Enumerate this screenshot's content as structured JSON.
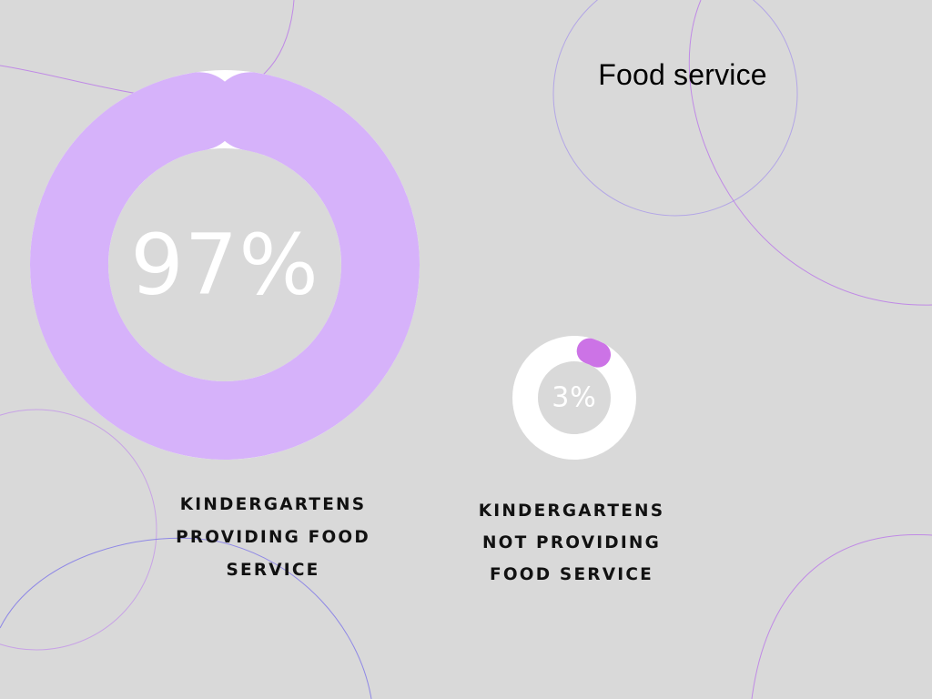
{
  "title": "Food service",
  "colors": {
    "background": "#d9d9d9",
    "primary_ring": "#d6b2fa",
    "secondary_dot": "#cc73e6",
    "track": "#ffffff",
    "center_text": "#ffffff",
    "deco_line": "#b889e6"
  },
  "chart_data": [
    {
      "type": "pie",
      "variant": "donut",
      "values": [
        97,
        3
      ],
      "center_label": "97%",
      "caption_lines": [
        "KINDERGARTENS",
        "PROVIDING FOOD",
        "SERVICE"
      ]
    },
    {
      "type": "pie",
      "variant": "donut",
      "values": [
        3,
        97
      ],
      "center_label": "3%",
      "caption_lines": [
        "KINDERGARTENS",
        "NOT PROVIDING",
        "FOOD SERVICE"
      ]
    }
  ]
}
